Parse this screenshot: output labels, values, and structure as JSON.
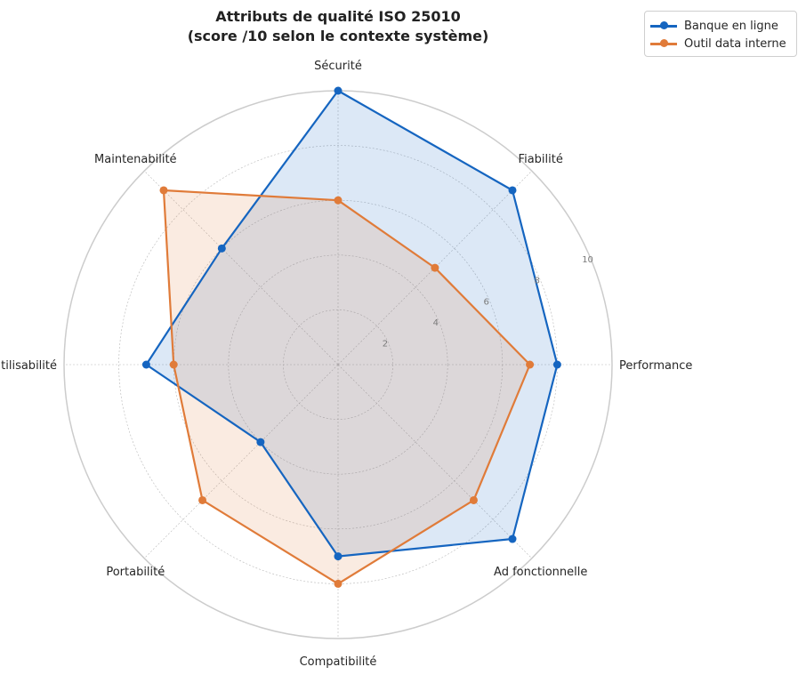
{
  "chart_data": {
    "type": "radar",
    "title_line1": "Attributs de qualité ISO 25010",
    "title_line2": "(score /10 selon le contexte système)",
    "axes": [
      "Performance",
      "Fiabilité",
      "Sécurité",
      "Maintenabilité",
      "Utilisabilité",
      "Portabilité",
      "Compatibilité",
      "Ad  fonctionnelle"
    ],
    "r_range": [
      0,
      10
    ],
    "r_ticks": [
      "2",
      "4",
      "6",
      "8",
      "10"
    ],
    "series": [
      {
        "name": "Banque en ligne",
        "color": "#1565c0",
        "values": [
          8,
          9,
          10,
          6,
          7,
          4,
          7,
          9
        ]
      },
      {
        "name": "Outil data interne",
        "color": "#e07b39",
        "values": [
          7,
          5,
          6,
          9,
          6,
          7,
          8,
          7
        ]
      }
    ],
    "legend_position": "top-right",
    "grid": true
  }
}
